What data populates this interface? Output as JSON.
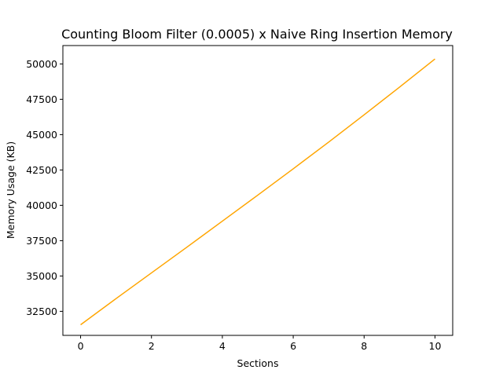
{
  "chart_data": {
    "type": "line",
    "title": "Counting Bloom Filter (0.0005) x Naive Ring Insertion Memory",
    "xlabel": "Sections",
    "ylabel": "Memory Usage (KB)",
    "xlim": [
      -0.5,
      10.5
    ],
    "ylim": [
      30800,
      51300
    ],
    "x_ticks": [
      0,
      2,
      4,
      6,
      8,
      10
    ],
    "x_tick_labels": [
      "0",
      "2",
      "4",
      "6",
      "8",
      "10"
    ],
    "y_ticks": [
      32500,
      35000,
      37500,
      40000,
      42500,
      45000,
      47500,
      50000
    ],
    "y_tick_labels": [
      "32500",
      "35000",
      "37500",
      "40000",
      "42500",
      "45000",
      "47500",
      "50000"
    ],
    "grid": false,
    "legend": "none",
    "series": [
      {
        "color": "#FFA500",
        "x": [
          0,
          1,
          2,
          3,
          4,
          5,
          6,
          7,
          8,
          9,
          10
        ],
        "y": [
          31550,
          33400,
          35220,
          37040,
          38880,
          40720,
          42580,
          44470,
          46400,
          48360,
          50350
        ]
      }
    ]
  }
}
